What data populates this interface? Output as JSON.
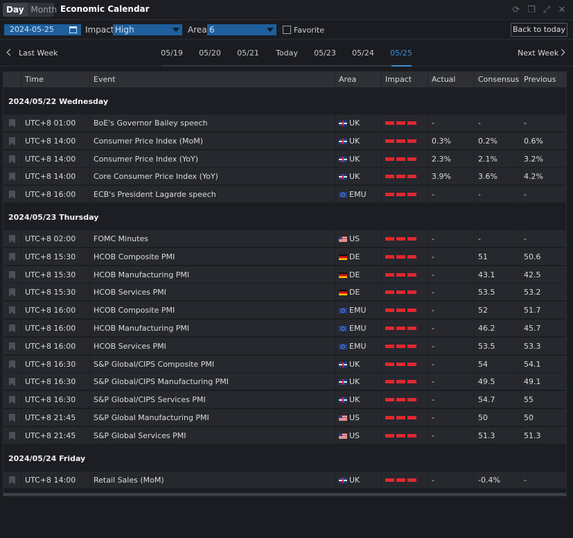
{
  "titlebar": {
    "view_tabs": [
      "Day",
      "Month"
    ],
    "title": "Economic Calendar"
  },
  "filters": {
    "date": "2024-05-25",
    "impact_label": "Impact",
    "impact_value": "High",
    "area_label": "Area",
    "area_value": "6",
    "favorite_label": "Favorite",
    "back_to_today": "Back to today"
  },
  "nav": {
    "prev_label": "Last Week",
    "next_label": "Next Week",
    "days": [
      "05/19",
      "05/20",
      "05/21",
      "Today",
      "05/23",
      "05/24",
      "05/25"
    ],
    "active_day": "05/25"
  },
  "table": {
    "columns": [
      "Time",
      "Event",
      "Area",
      "Impact",
      "Actual",
      "Consensus",
      "Previous"
    ],
    "groups": [
      {
        "date": "2024/05/22 Wednesday",
        "rows": [
          {
            "time": "UTC+8 01:00",
            "event": "BoE's Governor Bailey speech",
            "area": "UK",
            "flag": "uk",
            "actual": "-",
            "consensus": "-",
            "previous": "-"
          },
          {
            "time": "UTC+8 14:00",
            "event": "Consumer Price Index (MoM)",
            "area": "UK",
            "flag": "uk",
            "actual": "0.3%",
            "consensus": "0.2%",
            "previous": "0.6%"
          },
          {
            "time": "UTC+8 14:00",
            "event": "Consumer Price Index (YoY)",
            "area": "UK",
            "flag": "uk",
            "actual": "2.3%",
            "consensus": "2.1%",
            "previous": "3.2%"
          },
          {
            "time": "UTC+8 14:00",
            "event": "Core Consumer Price Index (YoY)",
            "area": "UK",
            "flag": "uk",
            "actual": "3.9%",
            "consensus": "3.6%",
            "previous": "4.2%"
          },
          {
            "time": "UTC+8 16:00",
            "event": "ECB's President Lagarde speech",
            "area": "EMU",
            "flag": "emu",
            "actual": "-",
            "consensus": "-",
            "previous": "-"
          }
        ]
      },
      {
        "date": "2024/05/23 Thursday",
        "rows": [
          {
            "time": "UTC+8 02:00",
            "event": "FOMC Minutes",
            "area": "US",
            "flag": "us",
            "actual": "-",
            "consensus": "-",
            "previous": "-"
          },
          {
            "time": "UTC+8 15:30",
            "event": "HCOB Composite PMI",
            "area": "DE",
            "flag": "de",
            "actual": "-",
            "consensus": "51",
            "previous": "50.6"
          },
          {
            "time": "UTC+8 15:30",
            "event": "HCOB Manufacturing PMI",
            "area": "DE",
            "flag": "de",
            "actual": "-",
            "consensus": "43.1",
            "previous": "42.5"
          },
          {
            "time": "UTC+8 15:30",
            "event": "HCOB Services PMI",
            "area": "DE",
            "flag": "de",
            "actual": "-",
            "consensus": "53.5",
            "previous": "53.2"
          },
          {
            "time": "UTC+8 16:00",
            "event": "HCOB Composite PMI",
            "area": "EMU",
            "flag": "emu",
            "actual": "-",
            "consensus": "52",
            "previous": "51.7"
          },
          {
            "time": "UTC+8 16:00",
            "event": "HCOB Manufacturing PMI",
            "area": "EMU",
            "flag": "emu",
            "actual": "-",
            "consensus": "46.2",
            "previous": "45.7"
          },
          {
            "time": "UTC+8 16:00",
            "event": "HCOB Services PMI",
            "area": "EMU",
            "flag": "emu",
            "actual": "-",
            "consensus": "53.5",
            "previous": "53.3"
          },
          {
            "time": "UTC+8 16:30",
            "event": "S&P Global/CIPS Composite PMI",
            "area": "UK",
            "flag": "uk",
            "actual": "-",
            "consensus": "54",
            "previous": "54.1"
          },
          {
            "time": "UTC+8 16:30",
            "event": "S&P Global/CIPS Manufacturing PMI",
            "area": "UK",
            "flag": "uk",
            "actual": "-",
            "consensus": "49.5",
            "previous": "49.1"
          },
          {
            "time": "UTC+8 16:30",
            "event": "S&P Global/CIPS Services PMI",
            "area": "UK",
            "flag": "uk",
            "actual": "-",
            "consensus": "54.7",
            "previous": "55"
          },
          {
            "time": "UTC+8 21:45",
            "event": "S&P Global Manufacturing PMI",
            "area": "US",
            "flag": "us",
            "actual": "-",
            "consensus": "50",
            "previous": "50"
          },
          {
            "time": "UTC+8 21:45",
            "event": "S&P Global Services PMI",
            "area": "US",
            "flag": "us",
            "actual": "-",
            "consensus": "51.3",
            "previous": "51.3"
          }
        ]
      },
      {
        "date": "2024/05/24 Friday",
        "rows": [
          {
            "time": "UTC+8 14:00",
            "event": "Retail Sales (MoM)",
            "area": "UK",
            "flag": "uk",
            "actual": "-",
            "consensus": "-0.4%",
            "previous": "-"
          }
        ]
      }
    ]
  },
  "colors": {
    "accent": "#3f8fd6",
    "impact_high": "#e0282e",
    "select_bg": "#1e5f9c"
  }
}
